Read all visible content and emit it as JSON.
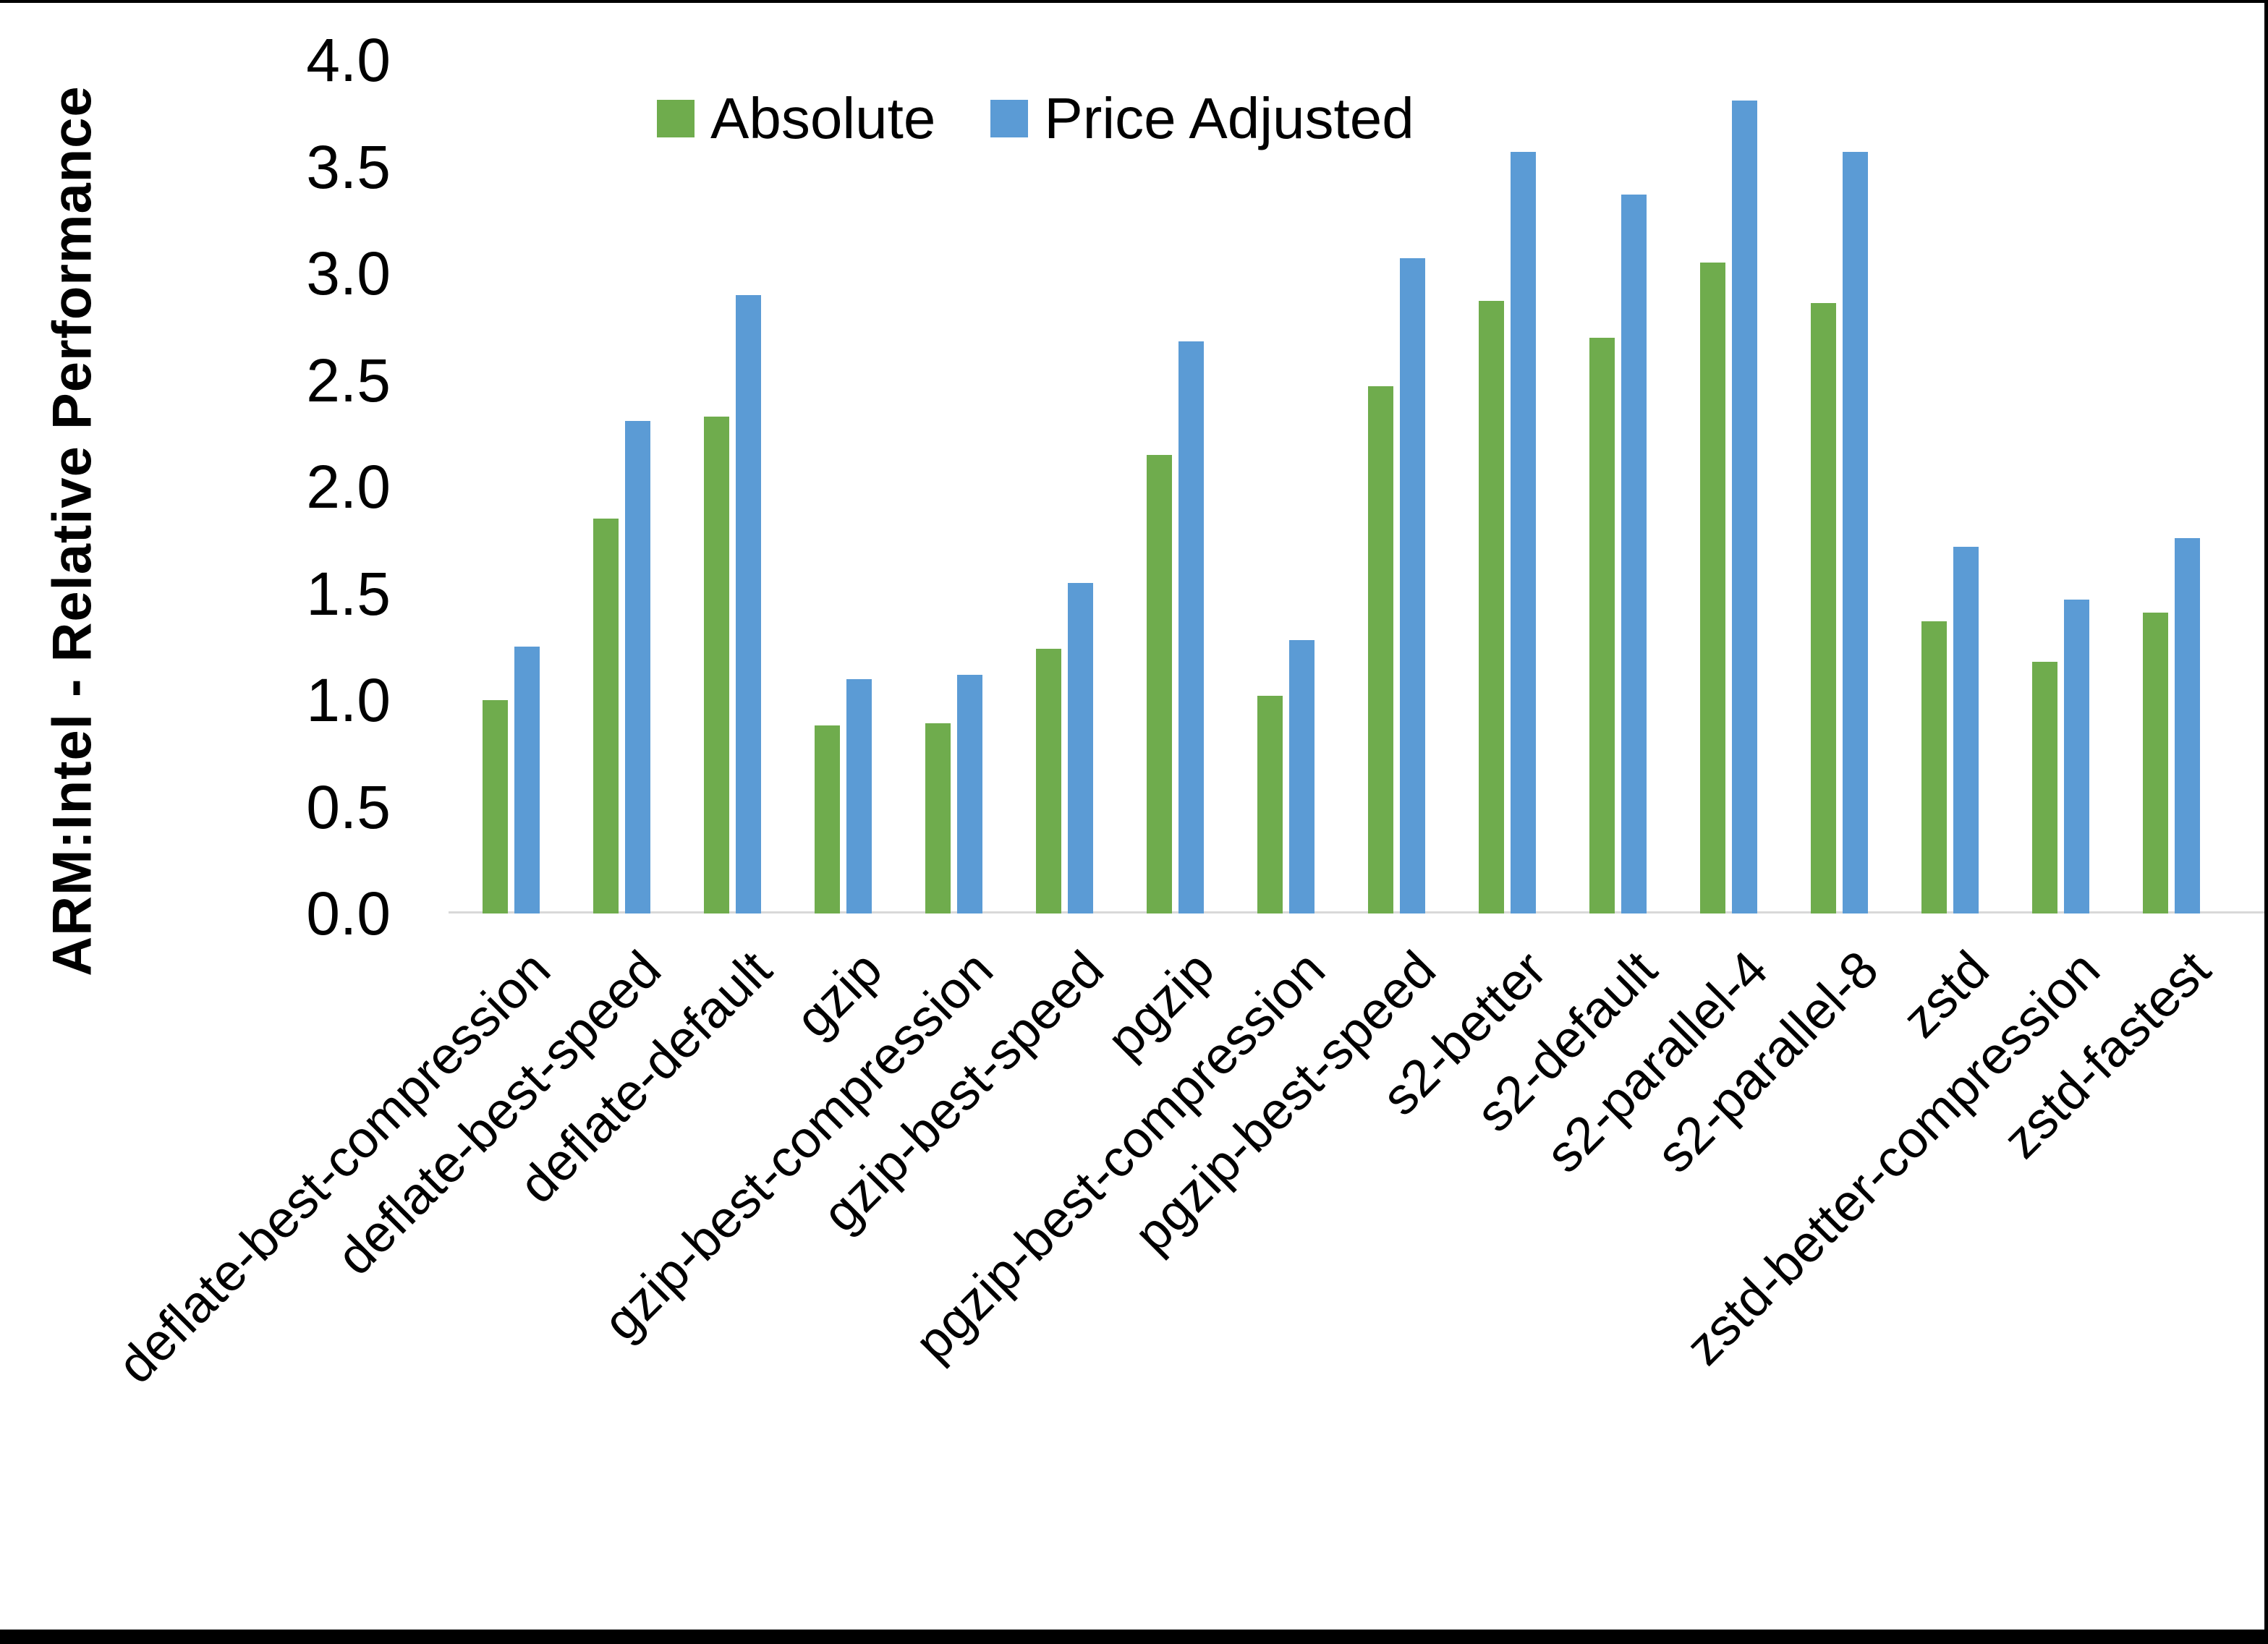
{
  "colors": {
    "absolute": "#6FAC4D",
    "price_adjusted": "#5B9BD5",
    "axis_line": "#D9D9D9",
    "frame": "#000000",
    "background": "#FFFFFF",
    "text": "#000000"
  },
  "y_axis": {
    "title": "ARM:Intel - Relative Performance",
    "ticks": [
      "0.0",
      "0.5",
      "1.0",
      "1.5",
      "2.0",
      "2.5",
      "3.0",
      "3.5",
      "4.0"
    ]
  },
  "legend": {
    "items": [
      {
        "label": "Absolute",
        "color": "#6FAC4D"
      },
      {
        "label": "Price Adjusted",
        "color": "#5B9BD5"
      }
    ]
  },
  "chart_data": {
    "type": "bar",
    "title": "",
    "xlabel": "",
    "ylabel": "ARM:Intel - Relative Performance",
    "ylim": [
      0.0,
      4.0
    ],
    "ytick_step": 0.5,
    "grid": false,
    "legend_position": "top-center",
    "categories": [
      "deflate-best-compression",
      "deflate-best-speed",
      "deflate-default",
      "gzip",
      "gzip-best-compression",
      "gzip-best-speed",
      "pgzip",
      "pgzip-best-compression",
      "pgzip-best-speed",
      "s2-better",
      "s2-default",
      "s2-parallel-4",
      "s2-parallel-8",
      "zstd",
      "zstd-better-compression",
      "zstd-fastest"
    ],
    "series": [
      {
        "name": "Absolute",
        "color": "#6FAC4D",
        "values": [
          1.0,
          1.85,
          2.33,
          0.88,
          0.89,
          1.24,
          2.15,
          1.02,
          2.47,
          2.87,
          2.7,
          3.05,
          2.86,
          1.37,
          1.18,
          1.41
        ]
      },
      {
        "name": "Price Adjusted",
        "color": "#5B9BD5",
        "values": [
          1.25,
          2.31,
          2.9,
          1.1,
          1.12,
          1.55,
          2.68,
          1.28,
          3.07,
          3.57,
          3.37,
          3.81,
          3.57,
          1.72,
          1.47,
          1.76
        ]
      }
    ]
  }
}
